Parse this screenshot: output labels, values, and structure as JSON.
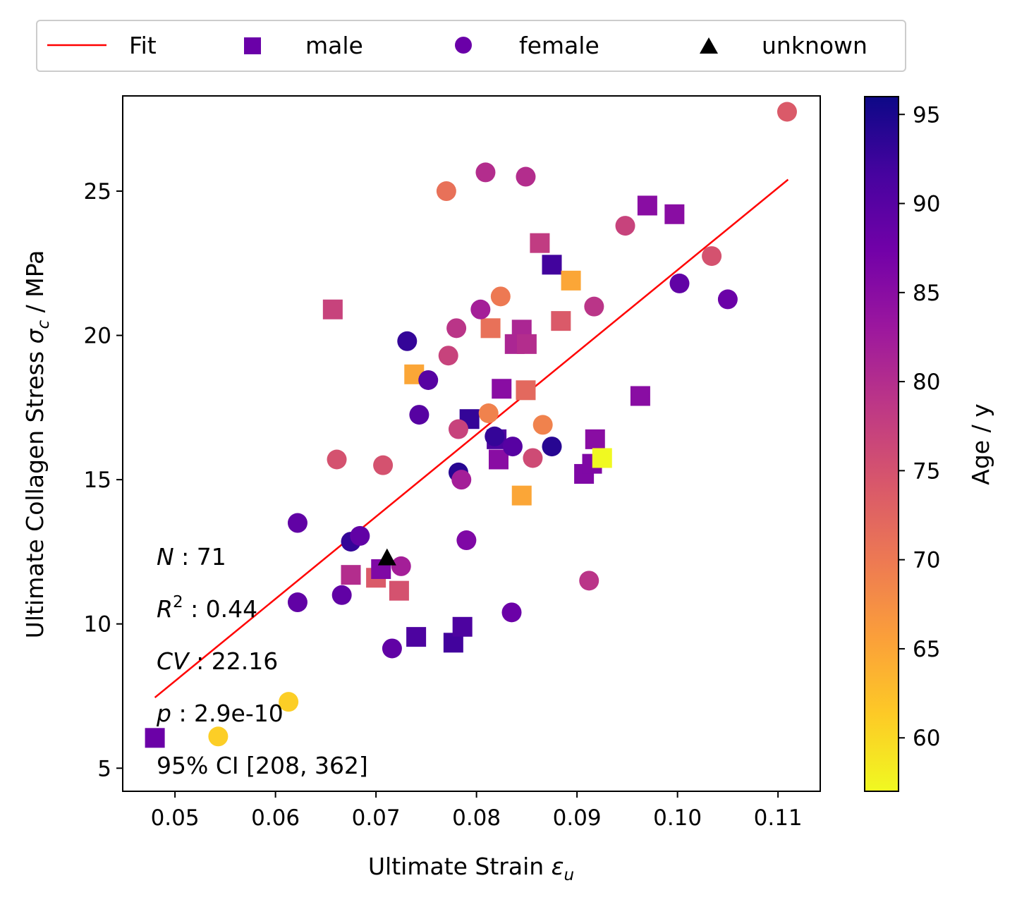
{
  "chart_data": {
    "type": "scatter",
    "xlabel": "Ultimate Strain ε_u",
    "xlabel_main": "Ultimate Strain ",
    "xlabel_sym": "ε",
    "xlabel_sub": "u",
    "ylabel": "Ultimate Collagen Stress σ_c / MPa",
    "ylabel_pre": "Ultimate Collagen Stress ",
    "ylabel_sym": "σ",
    "ylabel_sub": "c",
    "ylabel_post": " / MPa",
    "xlim": [
      0.0448,
      0.1142
    ],
    "ylim": [
      4.2,
      28.3
    ],
    "xticks": [
      0.05,
      0.06,
      0.07,
      0.08,
      0.09,
      0.1,
      0.11
    ],
    "xtick_labels": [
      "0.05",
      "0.06",
      "0.07",
      "0.08",
      "0.09",
      "0.10",
      "0.11"
    ],
    "yticks": [
      5,
      10,
      15,
      20,
      25
    ],
    "ytick_labels": [
      "5",
      "10",
      "15",
      "20",
      "25"
    ],
    "legend": {
      "placement": "top (outside, above axes)",
      "entries": [
        {
          "label": "Fit",
          "marker": "line",
          "color": "#ff0000"
        },
        {
          "label": "male",
          "marker": "square",
          "color": "#6a00a8"
        },
        {
          "label": "female",
          "marker": "circle",
          "color": "#6a00a8"
        },
        {
          "label": "unknown",
          "marker": "triangle",
          "color": "#000000"
        }
      ]
    },
    "colorbar": {
      "label": "Age / y",
      "range": [
        57,
        96
      ],
      "ticks": [
        60,
        65,
        70,
        75,
        80,
        85,
        90,
        95
      ],
      "tick_labels": [
        "60",
        "65",
        "70",
        "75",
        "80",
        "85",
        "90",
        "95"
      ],
      "colormap": "plasma (reversed)",
      "stops": [
        "#f0f921",
        "#fdca26",
        "#fb9f3a",
        "#ed7953",
        "#d8576b",
        "#bd3786",
        "#9c179e",
        "#7201a8",
        "#46039f",
        "#0d0887"
      ]
    },
    "fit": {
      "x": [
        0.048,
        0.111
      ],
      "y": [
        7.45,
        25.4
      ],
      "color": "#ff0000"
    },
    "stats": [
      {
        "sym": "N",
        "sup": "",
        "value": " : 71"
      },
      {
        "sym": "R",
        "sup": "2",
        "value": " : 0.44"
      },
      {
        "sym": "CV",
        "sup": "",
        "value": " : 22.16"
      },
      {
        "sym": "p",
        "sup": "",
        "value": " : 2.9e-10"
      },
      {
        "sym": "",
        "sup": "",
        "value": "95% CI [208,  362]"
      }
    ],
    "series": [
      {
        "name": "male",
        "marker": "square",
        "points": [
          {
            "x": 0.048,
            "y": 6.05,
            "age": 88
          },
          {
            "x": 0.0657,
            "y": 20.9,
            "age": 77
          },
          {
            "x": 0.0675,
            "y": 11.7,
            "age": 80
          },
          {
            "x": 0.07,
            "y": 11.6,
            "age": 74
          },
          {
            "x": 0.0705,
            "y": 11.9,
            "age": 86
          },
          {
            "x": 0.0723,
            "y": 11.15,
            "age": 75
          },
          {
            "x": 0.0738,
            "y": 18.65,
            "age": 65
          },
          {
            "x": 0.074,
            "y": 9.55,
            "age": 91
          },
          {
            "x": 0.0777,
            "y": 9.35,
            "age": 92
          },
          {
            "x": 0.0786,
            "y": 9.9,
            "age": 91
          },
          {
            "x": 0.0793,
            "y": 17.1,
            "age": 93
          },
          {
            "x": 0.0814,
            "y": 20.25,
            "age": 71
          },
          {
            "x": 0.082,
            "y": 16.4,
            "age": 91
          },
          {
            "x": 0.0822,
            "y": 15.7,
            "age": 85
          },
          {
            "x": 0.0825,
            "y": 18.15,
            "age": 85
          },
          {
            "x": 0.0838,
            "y": 19.7,
            "age": 81
          },
          {
            "x": 0.0845,
            "y": 20.2,
            "age": 81
          },
          {
            "x": 0.0845,
            "y": 14.45,
            "age": 65
          },
          {
            "x": 0.0849,
            "y": 18.1,
            "age": 72
          },
          {
            "x": 0.085,
            "y": 19.7,
            "age": 80
          },
          {
            "x": 0.0863,
            "y": 23.2,
            "age": 78
          },
          {
            "x": 0.0875,
            "y": 22.45,
            "age": 92
          },
          {
            "x": 0.0884,
            "y": 20.5,
            "age": 74
          },
          {
            "x": 0.0894,
            "y": 21.9,
            "age": 65
          },
          {
            "x": 0.0907,
            "y": 15.2,
            "age": 86
          },
          {
            "x": 0.0915,
            "y": 15.55,
            "age": 86
          },
          {
            "x": 0.0918,
            "y": 16.4,
            "age": 85
          },
          {
            "x": 0.0925,
            "y": 15.75,
            "age": 57
          },
          {
            "x": 0.0963,
            "y": 17.9,
            "age": 85
          },
          {
            "x": 0.097,
            "y": 24.5,
            "age": 85
          },
          {
            "x": 0.0997,
            "y": 24.2,
            "age": 85
          }
        ]
      },
      {
        "name": "female",
        "marker": "circle",
        "points": [
          {
            "x": 0.0543,
            "y": 6.1,
            "age": 61
          },
          {
            "x": 0.0613,
            "y": 7.3,
            "age": 61
          },
          {
            "x": 0.0622,
            "y": 13.5,
            "age": 89
          },
          {
            "x": 0.0622,
            "y": 10.75,
            "age": 89
          },
          {
            "x": 0.0661,
            "y": 15.7,
            "age": 75
          },
          {
            "x": 0.0666,
            "y": 11.0,
            "age": 89
          },
          {
            "x": 0.0675,
            "y": 12.85,
            "age": 93
          },
          {
            "x": 0.0684,
            "y": 13.05,
            "age": 89
          },
          {
            "x": 0.0707,
            "y": 15.5,
            "age": 75
          },
          {
            "x": 0.0716,
            "y": 9.15,
            "age": 89
          },
          {
            "x": 0.0725,
            "y": 12.0,
            "age": 82
          },
          {
            "x": 0.0731,
            "y": 19.8,
            "age": 93
          },
          {
            "x": 0.0743,
            "y": 17.25,
            "age": 90
          },
          {
            "x": 0.0752,
            "y": 18.45,
            "age": 90
          },
          {
            "x": 0.077,
            "y": 25.0,
            "age": 71
          },
          {
            "x": 0.0772,
            "y": 19.3,
            "age": 77
          },
          {
            "x": 0.078,
            "y": 20.25,
            "age": 79
          },
          {
            "x": 0.0782,
            "y": 16.75,
            "age": 77
          },
          {
            "x": 0.0782,
            "y": 15.25,
            "age": 94
          },
          {
            "x": 0.0785,
            "y": 15.0,
            "age": 82
          },
          {
            "x": 0.079,
            "y": 12.9,
            "age": 86
          },
          {
            "x": 0.0804,
            "y": 20.9,
            "age": 82
          },
          {
            "x": 0.0809,
            "y": 25.65,
            "age": 80
          },
          {
            "x": 0.0812,
            "y": 17.3,
            "age": 69
          },
          {
            "x": 0.0818,
            "y": 16.5,
            "age": 93
          },
          {
            "x": 0.0824,
            "y": 21.35,
            "age": 70
          },
          {
            "x": 0.0835,
            "y": 10.4,
            "age": 88
          },
          {
            "x": 0.0836,
            "y": 16.15,
            "age": 90
          },
          {
            "x": 0.0849,
            "y": 25.5,
            "age": 80
          },
          {
            "x": 0.0856,
            "y": 15.75,
            "age": 76
          },
          {
            "x": 0.0866,
            "y": 16.9,
            "age": 69
          },
          {
            "x": 0.0875,
            "y": 16.15,
            "age": 94
          },
          {
            "x": 0.0912,
            "y": 11.5,
            "age": 79
          },
          {
            "x": 0.0917,
            "y": 21.0,
            "age": 79
          },
          {
            "x": 0.0948,
            "y": 23.8,
            "age": 77
          },
          {
            "x": 0.1002,
            "y": 21.8,
            "age": 89
          },
          {
            "x": 0.1034,
            "y": 22.75,
            "age": 75
          },
          {
            "x": 0.105,
            "y": 21.25,
            "age": 88
          },
          {
            "x": 0.1109,
            "y": 27.75,
            "age": 74
          }
        ]
      },
      {
        "name": "unknown",
        "marker": "triangle",
        "color": "#000000",
        "points": [
          {
            "x": 0.0711,
            "y": 12.3
          }
        ]
      }
    ]
  }
}
